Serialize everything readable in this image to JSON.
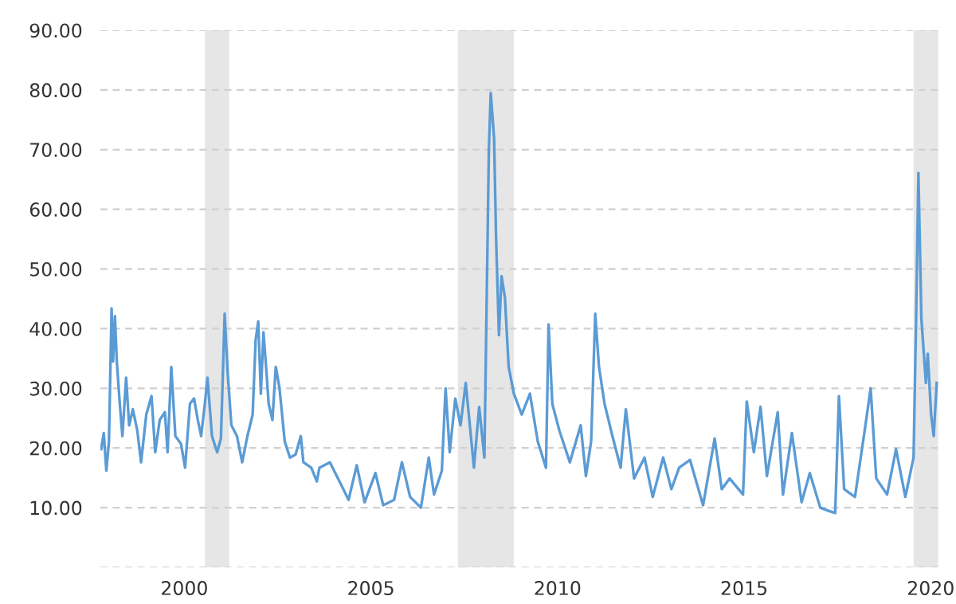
{
  "chart_data": {
    "type": "line",
    "x": [
      1997.77,
      1997.84,
      1997.91,
      1997.98,
      1998.05,
      1998.09,
      1998.14,
      1998.19,
      1998.27,
      1998.34,
      1998.44,
      1998.52,
      1998.62,
      1998.74,
      1998.84,
      1998.98,
      1999.12,
      1999.22,
      1999.34,
      1999.48,
      1999.55,
      1999.65,
      1999.76,
      1999.91,
      2000.02,
      2000.15,
      2000.26,
      2000.36,
      2000.45,
      2000.55,
      2000.62,
      2000.74,
      2000.88,
      2000.98,
      2001.08,
      2001.16,
      2001.26,
      2001.41,
      2001.55,
      2001.69,
      2001.83,
      2001.91,
      2001.98,
      2002.05,
      2002.12,
      2002.19,
      2002.26,
      2002.36,
      2002.45,
      2002.55,
      2002.69,
      2002.83,
      2002.98,
      2003.12,
      2003.19,
      2003.4,
      2003.55,
      2003.62,
      2003.9,
      2004.19,
      2004.4,
      2004.62,
      2004.83,
      2005.12,
      2005.33,
      2005.62,
      2005.83,
      2006.05,
      2006.34,
      2006.55,
      2006.69,
      2006.9,
      2007.0,
      2007.11,
      2007.26,
      2007.4,
      2007.54,
      2007.76,
      2007.9,
      2008.04,
      2008.16,
      2008.21,
      2008.3,
      2008.35,
      2008.43,
      2008.5,
      2008.59,
      2008.69,
      2008.83,
      2009.04,
      2009.26,
      2009.47,
      2009.69,
      2009.76,
      2009.86,
      2010.05,
      2010.33,
      2010.62,
      2010.76,
      2010.9,
      2011.01,
      2011.11,
      2011.26,
      2011.47,
      2011.69,
      2011.83,
      2012.05,
      2012.33,
      2012.55,
      2012.83,
      2013.05,
      2013.26,
      2013.55,
      2013.9,
      2014.21,
      2014.4,
      2014.61,
      2014.97,
      2015.07,
      2015.26,
      2015.44,
      2015.61,
      2015.9,
      2016.04,
      2016.28,
      2016.54,
      2016.76,
      2017.04,
      2017.25,
      2017.44,
      2017.54,
      2017.68,
      2017.97,
      2018.25,
      2018.39,
      2018.54,
      2018.83,
      2019.07,
      2019.32,
      2019.54,
      2019.61,
      2019.67,
      2019.75,
      2019.87,
      2019.92,
      2020.01,
      2020.08,
      2020.16
    ],
    "series": [
      {
        "color": "#5b9bd5",
        "values": [
          19.8,
          22.5,
          16.2,
          21.1,
          43.4,
          34.5,
          42.1,
          34.5,
          27.4,
          22.0,
          31.8,
          23.8,
          26.5,
          22.9,
          17.6,
          25.6,
          28.7,
          19.3,
          24.7,
          26.0,
          19.3,
          33.6,
          22.0,
          20.7,
          16.7,
          27.4,
          28.3,
          24.7,
          22.0,
          27.4,
          31.8,
          22.0,
          19.3,
          21.6,
          42.5,
          32.7,
          23.8,
          22.0,
          17.6,
          22.0,
          25.6,
          38.1,
          41.2,
          29.1,
          39.4,
          33.6,
          27.4,
          24.7,
          33.6,
          30.0,
          21.1,
          18.4,
          18.9,
          22.0,
          17.6,
          16.7,
          14.4,
          16.7,
          17.6,
          14.0,
          11.3,
          17.1,
          10.9,
          15.8,
          10.4,
          11.3,
          17.6,
          11.8,
          10.0,
          18.4,
          12.2,
          16.2,
          30.0,
          19.3,
          28.3,
          23.8,
          30.9,
          16.7,
          26.9,
          18.4,
          70.1,
          79.5,
          71.9,
          55.9,
          38.9,
          48.8,
          45.2,
          33.6,
          29.1,
          25.6,
          29.1,
          21.1,
          16.7,
          40.7,
          27.4,
          22.9,
          17.6,
          23.8,
          15.3,
          21.1,
          42.5,
          33.6,
          27.4,
          22.0,
          16.7,
          26.5,
          14.9,
          18.4,
          11.8,
          18.4,
          13.1,
          16.7,
          18.0,
          10.4,
          21.6,
          13.1,
          14.9,
          12.2,
          27.8,
          19.3,
          26.9,
          15.3,
          26.0,
          12.2,
          22.5,
          10.9,
          15.8,
          10.0,
          9.5,
          9.1,
          28.7,
          13.1,
          11.8,
          23.8,
          30.0,
          14.9,
          12.2,
          19.8,
          11.8,
          18.4,
          42.5,
          66.1,
          41.6,
          30.9,
          35.8,
          25.6,
          22.0,
          30.9
        ]
      }
    ],
    "xlim": [
      1997.75,
      2020.25
    ],
    "xticks": [
      2000,
      2005,
      2010,
      2015,
      2020
    ],
    "ylim": [
      0,
      90
    ],
    "yticks": [
      {
        "value": 0,
        "label": null
      },
      {
        "value": 10,
        "label": "10.00"
      },
      {
        "value": 20,
        "label": "20.00"
      },
      {
        "value": 30,
        "label": "30.00"
      },
      {
        "value": 40,
        "label": "40.00"
      },
      {
        "value": 50,
        "label": "50.00"
      },
      {
        "value": 60,
        "label": "60.00"
      },
      {
        "value": 70,
        "label": "70.00"
      },
      {
        "value": 80,
        "label": "80.00"
      },
      {
        "value": 90,
        "label": "90.00"
      }
    ],
    "bands": [
      {
        "axis": "x",
        "from": 2000.55,
        "to": 2001.2,
        "color": "#e6e6e6"
      },
      {
        "axis": "x",
        "from": 2007.33,
        "to": 2008.83,
        "color": "#e6e6e6"
      },
      {
        "axis": "x",
        "from": 2019.54,
        "to": 2020.2,
        "color": "#e6e6e6"
      }
    ],
    "grid": "y",
    "line_style": "solid",
    "marker": "none",
    "legend": false
  }
}
